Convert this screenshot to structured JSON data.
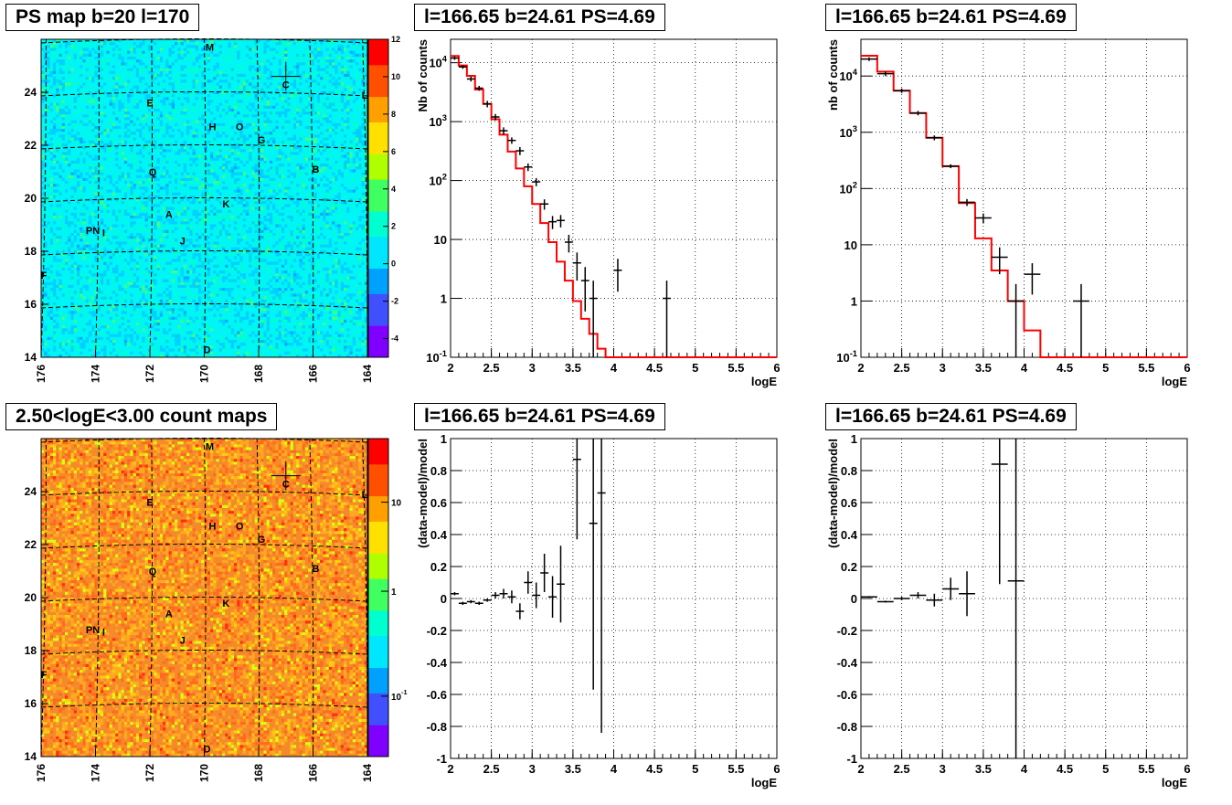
{
  "colors": {
    "map1_bg": "#00f0f5",
    "map2_bg": "#f4862a",
    "grid": "#000000",
    "model_line": "#ff0000",
    "data_marks": "#000000",
    "palette": [
      "#8000ff",
      "#4050ff",
      "#00a0ff",
      "#00e6ff",
      "#00ffd0",
      "#40ff60",
      "#b0ff00",
      "#ffe000",
      "#ffa000",
      "#ff5000",
      "#ff0000"
    ]
  },
  "chart_data": [
    {
      "type": "heatmap",
      "title": "PS map b=20 l=170",
      "xlim": [
        176,
        164
      ],
      "ylim": [
        14,
        26
      ],
      "x_ticks": [
        "176",
        "174",
        "172",
        "170",
        "168",
        "166",
        "164"
      ],
      "y_ticks": [
        "14",
        "16",
        "18",
        "20",
        "22",
        "24"
      ],
      "colorbar_ticks": [
        "-4",
        "-2",
        "0",
        "2",
        "4",
        "6",
        "8",
        "10",
        "12"
      ],
      "colorbar_range": [
        -5,
        12
      ],
      "sources": [
        {
          "label": "M",
          "l": 169.8,
          "b": 25.7
        },
        {
          "label": "C",
          "l": 167.0,
          "b": 24.3
        },
        {
          "label": "L",
          "l": 164.1,
          "b": 23.9
        },
        {
          "label": "E",
          "l": 172.0,
          "b": 23.6
        },
        {
          "label": "H",
          "l": 169.7,
          "b": 22.7
        },
        {
          "label": "O",
          "l": 168.7,
          "b": 22.7
        },
        {
          "label": "G",
          "l": 167.9,
          "b": 22.2
        },
        {
          "label": "B",
          "l": 165.9,
          "b": 21.1
        },
        {
          "label": "Q",
          "l": 171.9,
          "b": 21.0
        },
        {
          "label": "K",
          "l": 169.2,
          "b": 19.8
        },
        {
          "label": "A",
          "l": 171.3,
          "b": 19.4
        },
        {
          "label": "PN",
          "l": 174.1,
          "b": 18.8
        },
        {
          "label": "I",
          "l": 173.7,
          "b": 18.7
        },
        {
          "label": "J",
          "l": 170.8,
          "b": 18.4
        },
        {
          "label": "F",
          "l": 175.9,
          "b": 17.1
        },
        {
          "label": "D",
          "l": 169.9,
          "b": 14.3
        }
      ],
      "marker": {
        "l": 167.0,
        "b": 24.6
      }
    },
    {
      "type": "heatmap",
      "title": "2.50<logE<3.00 count maps",
      "xlim": [
        176,
        164
      ],
      "ylim": [
        14,
        26
      ],
      "x_ticks": [
        "176",
        "174",
        "172",
        "170",
        "168",
        "166",
        "164"
      ],
      "y_ticks": [
        "14",
        "16",
        "18",
        "20",
        "22",
        "24"
      ],
      "colorbar_ticks": [
        "10",
        "1",
        "10^-1"
      ],
      "colorbar_log": true,
      "sources": [
        {
          "label": "M",
          "l": 169.8,
          "b": 25.7
        },
        {
          "label": "C",
          "l": 167.0,
          "b": 24.3
        },
        {
          "label": "L",
          "l": 164.1,
          "b": 23.9
        },
        {
          "label": "E",
          "l": 172.0,
          "b": 23.6
        },
        {
          "label": "H",
          "l": 169.7,
          "b": 22.7
        },
        {
          "label": "O",
          "l": 168.7,
          "b": 22.7
        },
        {
          "label": "G",
          "l": 167.9,
          "b": 22.2
        },
        {
          "label": "B",
          "l": 165.9,
          "b": 21.1
        },
        {
          "label": "Q",
          "l": 171.9,
          "b": 21.0
        },
        {
          "label": "K",
          "l": 169.2,
          "b": 19.8
        },
        {
          "label": "A",
          "l": 171.3,
          "b": 19.4
        },
        {
          "label": "PN",
          "l": 174.1,
          "b": 18.8
        },
        {
          "label": "I",
          "l": 173.7,
          "b": 18.7
        },
        {
          "label": "J",
          "l": 170.8,
          "b": 18.4
        },
        {
          "label": "F",
          "l": 175.9,
          "b": 17.1
        },
        {
          "label": "D",
          "l": 169.9,
          "b": 14.3
        }
      ],
      "marker": {
        "l": 167.0,
        "b": 24.6
      }
    },
    {
      "type": "line",
      "title": "l=166.65 b=24.61 PS=4.69",
      "xlabel": "logE",
      "ylabel": "Nb of counts",
      "xlim": [
        2,
        6
      ],
      "ylim": [
        0.1,
        25000
      ],
      "yscale": "log",
      "x_ticks": [
        "2",
        "2.5",
        "3",
        "3.5",
        "4",
        "4.5",
        "5",
        "5.5",
        "6"
      ],
      "y_ticks": [
        {
          "v": 0.1,
          "t": "10^-1"
        },
        {
          "v": 1,
          "t": "1"
        },
        {
          "v": 10,
          "t": "10"
        },
        {
          "v": 100,
          "t": "10^2"
        },
        {
          "v": 1000,
          "t": "10^3"
        },
        {
          "v": 10000,
          "t": "10^4"
        }
      ],
      "model": {
        "edges": [
          2,
          2.1,
          2.2,
          2.3,
          2.4,
          2.5,
          2.6,
          2.7,
          2.8,
          2.9,
          3.0,
          3.1,
          3.2,
          3.3,
          3.4,
          3.5,
          3.6,
          3.7,
          3.8,
          3.9,
          4.0,
          4.1,
          4.2,
          6.0
        ],
        "values": [
          13000,
          9000,
          6000,
          3500,
          2000,
          1100,
          600,
          310,
          160,
          80,
          40,
          19,
          9,
          4.2,
          2,
          0.9,
          0.45,
          0.25,
          0.14,
          0.1,
          0.1,
          0.1,
          0.1
        ]
      },
      "points": [
        {
          "x": 2.05,
          "y": 12000,
          "err": 800,
          "xerr": 0.05
        },
        {
          "x": 2.15,
          "y": 8500,
          "err": 600,
          "xerr": 0.05
        },
        {
          "x": 2.25,
          "y": 5300,
          "err": 500,
          "xerr": 0.05
        },
        {
          "x": 2.35,
          "y": 3700,
          "err": 350,
          "xerr": 0.05
        },
        {
          "x": 2.45,
          "y": 2000,
          "err": 250,
          "xerr": 0.05
        },
        {
          "x": 2.55,
          "y": 1200,
          "err": 150,
          "xerr": 0.05
        },
        {
          "x": 2.65,
          "y": 700,
          "err": 100,
          "xerr": 0.05
        },
        {
          "x": 2.75,
          "y": 480,
          "err": 60,
          "xerr": 0.05
        },
        {
          "x": 2.85,
          "y": 320,
          "err": 50,
          "xerr": 0.05
        },
        {
          "x": 2.95,
          "y": 170,
          "err": 25,
          "xerr": 0.05
        },
        {
          "x": 3.05,
          "y": 95,
          "err": 15,
          "xerr": 0.05
        },
        {
          "x": 3.15,
          "y": 40,
          "err": 8,
          "xerr": 0.05
        },
        {
          "x": 3.25,
          "y": 20,
          "err": 5,
          "xerr": 0.05
        },
        {
          "x": 3.35,
          "y": 21,
          "err": 5,
          "xerr": 0.05
        },
        {
          "x": 3.45,
          "y": 9,
          "err": 3,
          "xerr": 0.05
        },
        {
          "x": 3.55,
          "y": 4,
          "err": 2,
          "xerr": 0.05
        },
        {
          "x": 3.65,
          "y": 2,
          "err": 1.4,
          "xerr": 0.05
        },
        {
          "x": 3.75,
          "y": 1,
          "err": 1,
          "xerr": 0.05
        },
        {
          "x": 4.05,
          "y": 3,
          "err": 1.7,
          "xerr": 0.05
        },
        {
          "x": 4.65,
          "y": 1,
          "err": 1,
          "xerr": 0.05
        }
      ]
    },
    {
      "type": "line",
      "title": "l=166.65 b=24.61 PS=4.69",
      "xlabel": "logE",
      "ylabel": "nb of counts",
      "xlim": [
        2,
        6
      ],
      "ylim": [
        0.1,
        45000
      ],
      "yscale": "log",
      "x_ticks": [
        "2",
        "2.5",
        "3",
        "3.5",
        "4",
        "4.5",
        "5",
        "5.5",
        "6"
      ],
      "y_ticks": [
        {
          "v": 0.1,
          "t": "10^-1"
        },
        {
          "v": 1,
          "t": "1"
        },
        {
          "v": 10,
          "t": "10"
        },
        {
          "v": 100,
          "t": "10^2"
        },
        {
          "v": 1000,
          "t": "10^3"
        },
        {
          "v": 10000,
          "t": "10^4"
        }
      ],
      "model": {
        "edges": [
          2,
          2.2,
          2.4,
          2.6,
          2.8,
          3.0,
          3.2,
          3.4,
          3.6,
          3.8,
          4.0,
          4.2,
          6.0
        ],
        "values": [
          23000,
          12000,
          5500,
          2200,
          800,
          250,
          55,
          13,
          3.5,
          1,
          0.3,
          0.1
        ]
      },
      "points": [
        {
          "x": 2.1,
          "y": 20000,
          "err": 1500,
          "xerr": 0.1
        },
        {
          "x": 2.3,
          "y": 11000,
          "err": 1000,
          "xerr": 0.1
        },
        {
          "x": 2.5,
          "y": 5500,
          "err": 500,
          "xerr": 0.1
        },
        {
          "x": 2.7,
          "y": 2200,
          "err": 200,
          "xerr": 0.1
        },
        {
          "x": 2.9,
          "y": 800,
          "err": 80,
          "xerr": 0.1
        },
        {
          "x": 3.1,
          "y": 250,
          "err": 20,
          "xerr": 0.1
        },
        {
          "x": 3.3,
          "y": 57,
          "err": 8,
          "xerr": 0.1
        },
        {
          "x": 3.5,
          "y": 30,
          "err": 6,
          "xerr": 0.1
        },
        {
          "x": 3.7,
          "y": 6,
          "err": 3,
          "xerr": 0.1
        },
        {
          "x": 3.9,
          "y": 1,
          "err": 1,
          "xerr": 0.1
        },
        {
          "x": 4.1,
          "y": 3,
          "err": 1.7,
          "xerr": 0.1
        },
        {
          "x": 4.7,
          "y": 1,
          "err": 1,
          "xerr": 0.1
        }
      ]
    },
    {
      "type": "scatter",
      "title": "l=166.65 b=24.61 PS=4.69",
      "xlabel": "logE",
      "ylabel": "(data-model)/model",
      "xlim": [
        2,
        6
      ],
      "ylim": [
        -1,
        1
      ],
      "x_ticks": [
        "2",
        "2.5",
        "3",
        "3.5",
        "4",
        "4.5",
        "5",
        "5.5",
        "6"
      ],
      "y_ticks": [
        "-1",
        "-0.8",
        "-0.6",
        "-0.4",
        "-0.2",
        "0",
        "0.2",
        "0.4",
        "0.6",
        "0.8",
        "1"
      ],
      "points": [
        {
          "x": 2.05,
          "y": 0.03,
          "err": 0.01,
          "xerr": 0.05
        },
        {
          "x": 2.15,
          "y": -0.03,
          "err": 0.01,
          "xerr": 0.05
        },
        {
          "x": 2.25,
          "y": -0.02,
          "err": 0.01,
          "xerr": 0.05
        },
        {
          "x": 2.35,
          "y": -0.03,
          "err": 0.01,
          "xerr": 0.05
        },
        {
          "x": 2.45,
          "y": -0.01,
          "err": 0.01,
          "xerr": 0.05
        },
        {
          "x": 2.55,
          "y": 0.02,
          "err": 0.02,
          "xerr": 0.05
        },
        {
          "x": 2.65,
          "y": 0.03,
          "err": 0.03,
          "xerr": 0.05
        },
        {
          "x": 2.75,
          "y": 0.01,
          "err": 0.04,
          "xerr": 0.05
        },
        {
          "x": 2.85,
          "y": -0.08,
          "err": 0.05,
          "xerr": 0.05
        },
        {
          "x": 2.95,
          "y": 0.1,
          "err": 0.07,
          "xerr": 0.05
        },
        {
          "x": 3.05,
          "y": 0.02,
          "err": 0.08,
          "xerr": 0.05
        },
        {
          "x": 3.15,
          "y": 0.16,
          "err": 0.12,
          "xerr": 0.05
        },
        {
          "x": 3.25,
          "y": 0.01,
          "err": 0.13,
          "xerr": 0.05
        },
        {
          "x": 3.35,
          "y": 0.09,
          "err": 0.24,
          "xerr": 0.05
        },
        {
          "x": 3.55,
          "y": 0.87,
          "err": 0.5,
          "xerr": 0.05
        },
        {
          "x": 3.75,
          "y": 0.47,
          "err": 1.04,
          "xerr": 0.05
        },
        {
          "x": 3.85,
          "y": 0.66,
          "err": 1.5,
          "xerr": 0.05
        }
      ]
    },
    {
      "type": "scatter",
      "title": "l=166.65 b=24.61 PS=4.69",
      "xlabel": "logE",
      "ylabel": "(data-model)/model",
      "xlim": [
        2,
        6
      ],
      "ylim": [
        -1,
        1
      ],
      "x_ticks": [
        "2",
        "2.5",
        "3",
        "3.5",
        "4",
        "4.5",
        "5",
        "5.5",
        "6"
      ],
      "y_ticks": [
        "-1",
        "-0.8",
        "-0.6",
        "-0.4",
        "-0.2",
        "0",
        "0.2",
        "0.4",
        "0.6",
        "0.8",
        "1"
      ],
      "points": [
        {
          "x": 2.1,
          "y": 0.01,
          "err": 0.005,
          "xerr": 0.1
        },
        {
          "x": 2.3,
          "y": -0.02,
          "err": 0.006,
          "xerr": 0.1
        },
        {
          "x": 2.5,
          "y": 0.0,
          "err": 0.01,
          "xerr": 0.1
        },
        {
          "x": 2.7,
          "y": 0.02,
          "err": 0.02,
          "xerr": 0.1
        },
        {
          "x": 2.9,
          "y": -0.01,
          "err": 0.04,
          "xerr": 0.1
        },
        {
          "x": 3.1,
          "y": 0.06,
          "err": 0.07,
          "xerr": 0.1
        },
        {
          "x": 3.3,
          "y": 0.03,
          "err": 0.14,
          "xerr": 0.1
        },
        {
          "x": 3.7,
          "y": 0.84,
          "err": 0.75,
          "xerr": 0.1
        },
        {
          "x": 3.9,
          "y": 0.11,
          "err": 1.2,
          "xerr": 0.1
        }
      ]
    }
  ]
}
